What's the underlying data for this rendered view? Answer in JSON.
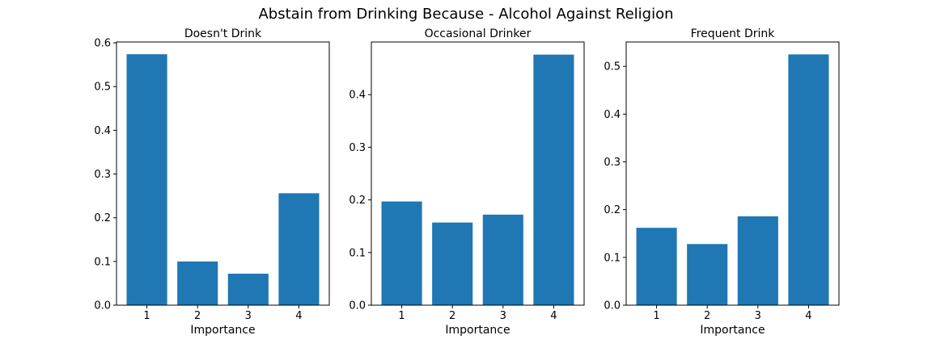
{
  "figure": {
    "suptitle": "Abstain from Drinking Because - Alcohol Against Religion",
    "bar_color": "#1f77b4"
  },
  "chart_data": [
    {
      "type": "bar",
      "title": "Doesn't Drink",
      "xlabel": "Importance",
      "ylabel": "",
      "categories": [
        "1",
        "2",
        "3",
        "4"
      ],
      "values": [
        0.574,
        0.1,
        0.072,
        0.256
      ],
      "ylim": [
        0,
        0.602
      ],
      "yticks": [
        0.0,
        0.1,
        0.2,
        0.3,
        0.4,
        0.5,
        0.6
      ],
      "ytick_labels": [
        "0.0",
        "0.1",
        "0.2",
        "0.3",
        "0.4",
        "0.5",
        "0.6"
      ],
      "grid": false,
      "legend": "none"
    },
    {
      "type": "bar",
      "title": "Occasional Drinker",
      "xlabel": "Importance",
      "ylabel": "",
      "categories": [
        "1",
        "2",
        "3",
        "4"
      ],
      "values": [
        0.197,
        0.157,
        0.172,
        0.476
      ],
      "ylim": [
        0,
        0.5
      ],
      "yticks": [
        0.0,
        0.1,
        0.2,
        0.3,
        0.4
      ],
      "ytick_labels": [
        "0.0",
        "0.1",
        "0.2",
        "0.3",
        "0.4"
      ],
      "grid": false,
      "legend": "none"
    },
    {
      "type": "bar",
      "title": "Frequent Drink",
      "xlabel": "Importance",
      "ylabel": "",
      "categories": [
        "1",
        "2",
        "3",
        "4"
      ],
      "values": [
        0.162,
        0.128,
        0.186,
        0.525
      ],
      "ylim": [
        0,
        0.551
      ],
      "yticks": [
        0.0,
        0.1,
        0.2,
        0.3,
        0.4,
        0.5
      ],
      "ytick_labels": [
        "0.0",
        "0.1",
        "0.2",
        "0.3",
        "0.4",
        "0.5"
      ],
      "grid": false,
      "legend": "none"
    }
  ]
}
